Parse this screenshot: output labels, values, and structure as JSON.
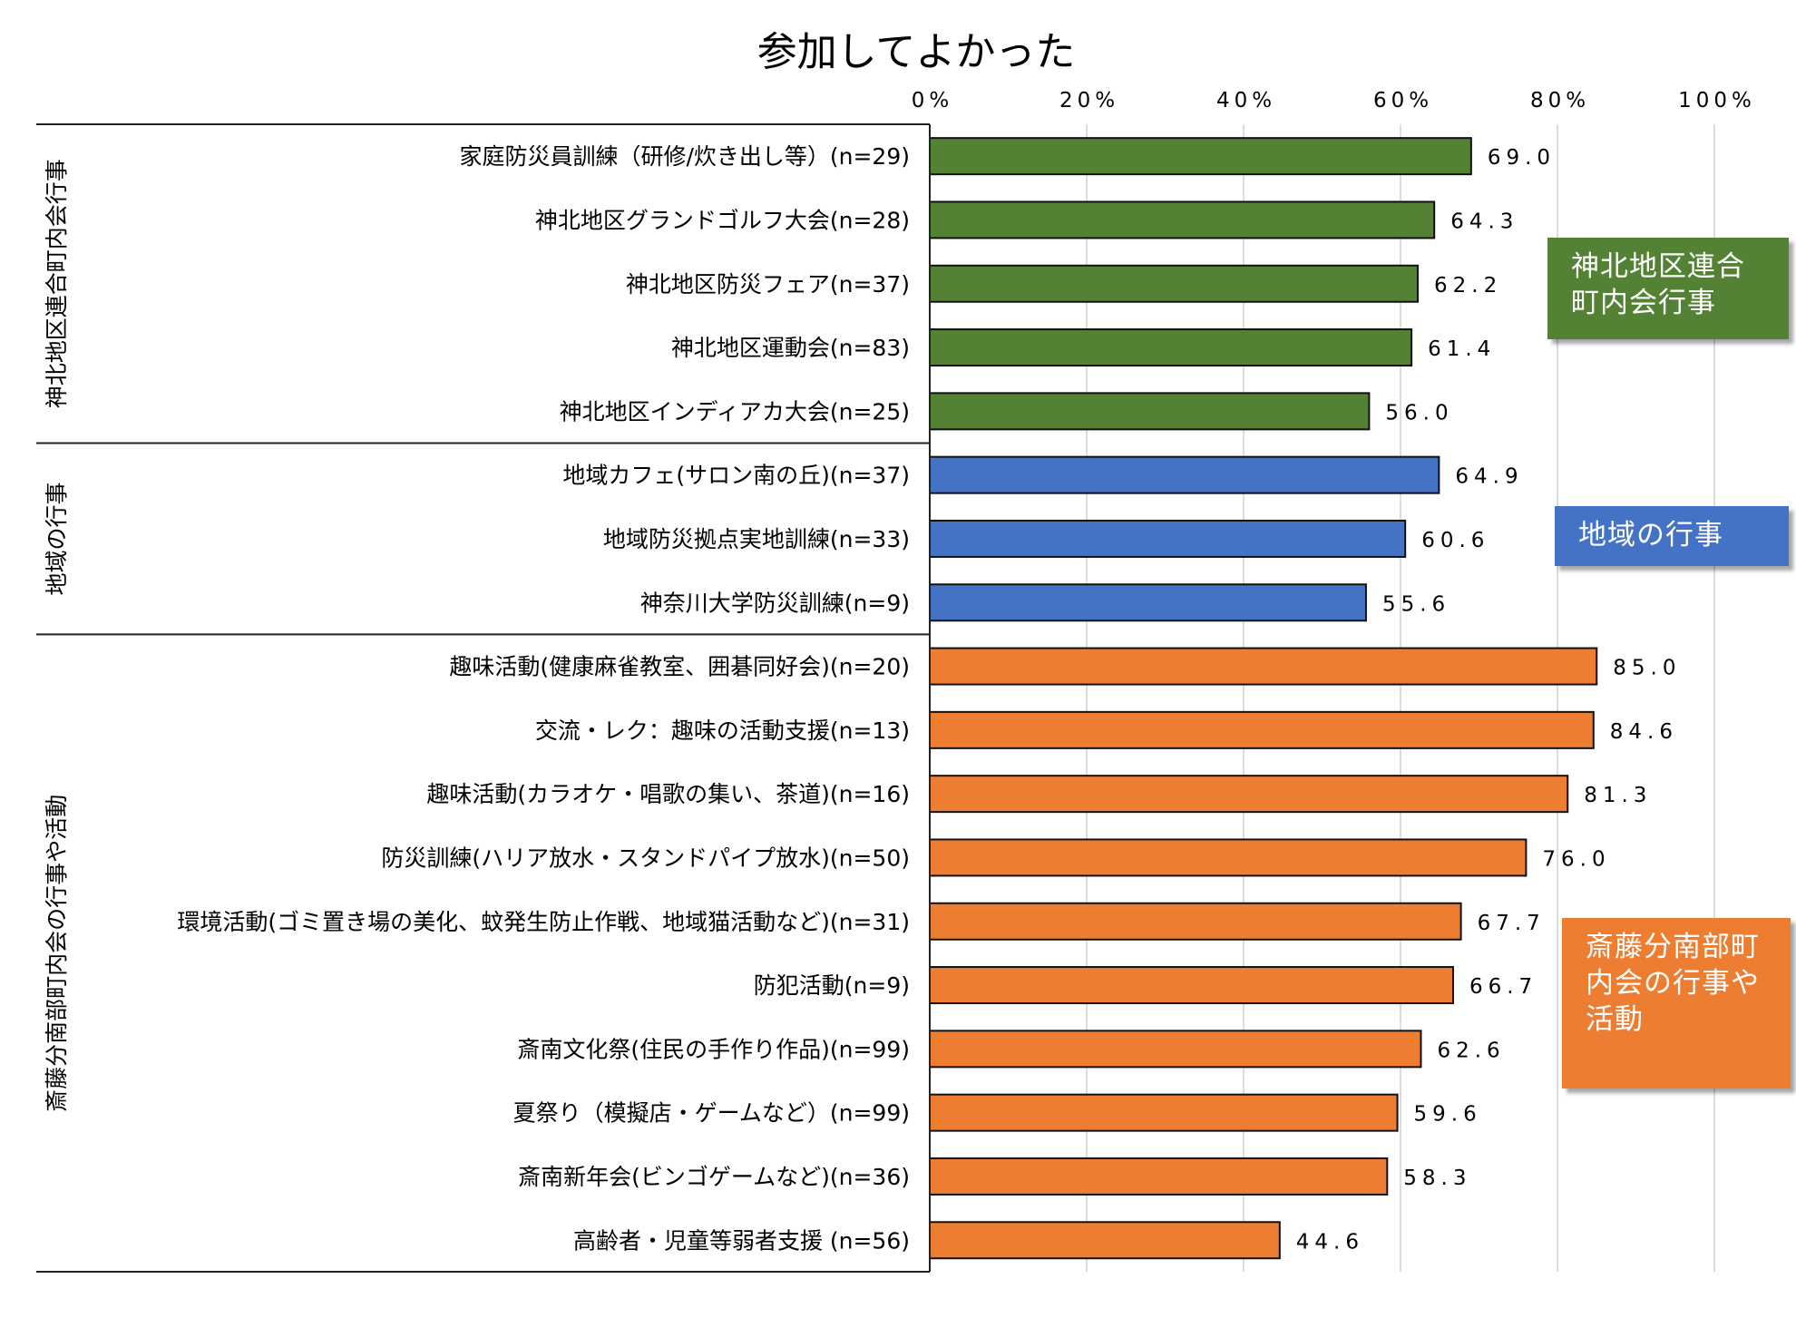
{
  "chart_data": {
    "type": "bar",
    "orientation": "horizontal",
    "title": "参加してよかった",
    "xlim": [
      0,
      100
    ],
    "ticks": [
      "0%",
      "20%",
      "40%",
      "60%",
      "80%",
      "100%"
    ],
    "grid": true,
    "groups": [
      {
        "label": "神北地区連合町内会行事",
        "callout": "神北地区連合町内会行事",
        "color": "#548235",
        "categories": [
          "家庭防災員訓練（研修/炊き出し等）(n=29)",
          "神北地区グランドゴルフ大会(n=28)",
          "神北地区防災フェア(n=37)",
          "神北地区運動会(n=83)",
          "神北地区インディアカ大会(n=25)"
        ],
        "values": [
          69.0,
          64.3,
          62.2,
          61.4,
          56.0
        ],
        "value_labels": [
          "69.0",
          "64.3",
          "62.2",
          "61.4",
          "56.0"
        ]
      },
      {
        "label": "地域の行事",
        "callout": "地域の行事",
        "color": "#4472c4",
        "categories": [
          "地域カフェ(サロン南の丘)(n=37)",
          "地域防災拠点実地訓練(n=33)",
          "神奈川大学防災訓練(n=9)"
        ],
        "values": [
          64.9,
          60.6,
          55.6
        ],
        "value_labels": [
          "64.9",
          "60.6",
          "55.6"
        ]
      },
      {
        "label": "斎藤分南部町内会の行事や活動",
        "callout": "斎藤分南部町内会の行事や活動",
        "color": "#ed7d31",
        "categories": [
          "趣味活動(健康麻雀教室、囲碁同好会)(n=20)",
          "交流・レク：趣味の活動支援(n=13)",
          "趣味活動(カラオケ・唱歌の集い、茶道)(n=16)",
          "防災訓練(ハリア放水・スタンドパイプ放水)(n=50)",
          "環境活動(ゴミ置き場の美化、蚊発生防止作戦、地域猫活動など)(n=31)",
          "防犯活動(n=9)",
          "斎南文化祭(住民の手作り作品)(n=99)",
          "夏祭り（模擬店・ゲームなど）(n=99)",
          "斎南新年会(ビンゴゲームなど)(n=36)",
          "高齢者・児童等弱者支援 (n=56)"
        ],
        "values": [
          85.0,
          84.6,
          81.3,
          76.0,
          67.7,
          66.7,
          62.6,
          59.6,
          58.3,
          44.6
        ],
        "value_labels": [
          "85.0",
          "84.6",
          "81.3",
          "76.0",
          "67.7",
          "66.7",
          "62.6",
          "59.6",
          "58.3",
          "44.6"
        ]
      }
    ]
  }
}
